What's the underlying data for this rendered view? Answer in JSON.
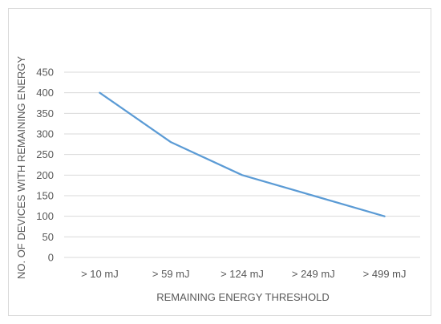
{
  "chart_data": {
    "type": "line",
    "title": "",
    "xlabel": "REMAINING ENERGY THRESHOLD",
    "ylabel": "NO. OF DEVICES WITH REMAINING ENERGY",
    "categories": [
      "> 10 mJ",
      "> 59 mJ",
      "> 124 mJ",
      "> 249 mJ",
      "> 499 mJ"
    ],
    "series": [
      {
        "values": [
          400,
          280,
          200,
          150,
          100
        ],
        "color": "#5b9bd5"
      }
    ],
    "ylim": [
      0,
      450
    ],
    "yticks": [
      0,
      50,
      100,
      150,
      200,
      250,
      300,
      350,
      400,
      450
    ],
    "grid": true,
    "legend": "none",
    "colors": {
      "grid": "#d9d9d9",
      "text": "#595959",
      "line": "#5b9bd5"
    }
  }
}
